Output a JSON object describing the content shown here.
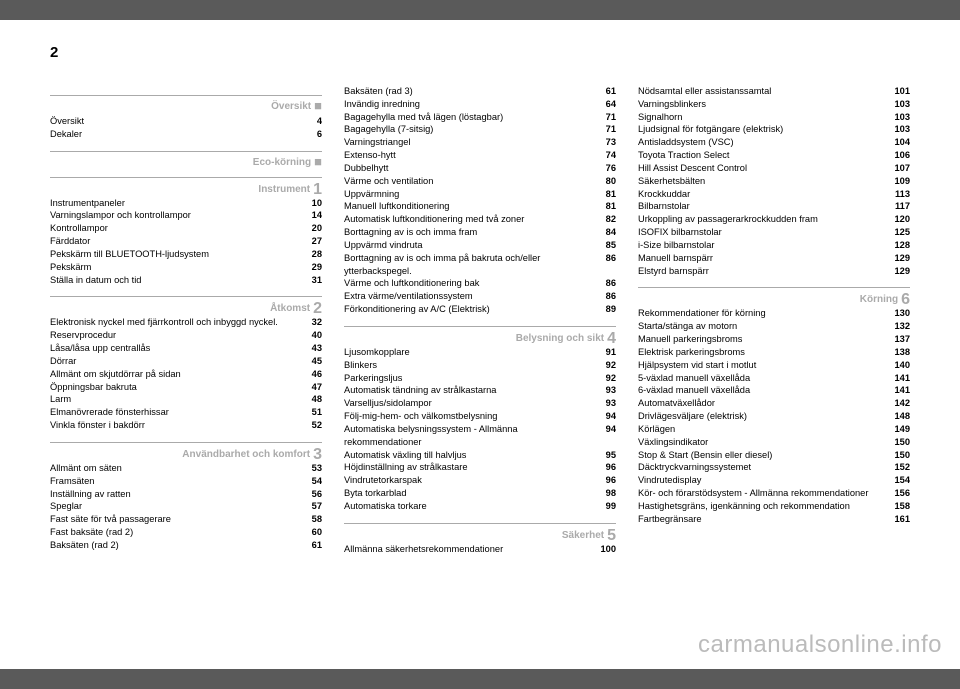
{
  "page_number": "2",
  "watermark": "carmanualsonline.info",
  "columns": [
    {
      "blocks": [
        {
          "type": "section",
          "label": "Översikt",
          "marker": "square"
        },
        {
          "type": "entries",
          "items": [
            {
              "t": "Översikt",
              "p": "4"
            },
            {
              "t": "Dekaler",
              "p": "6"
            }
          ]
        },
        {
          "type": "section",
          "label": "Eco-körning",
          "marker": "square"
        },
        {
          "type": "section",
          "label": "Instrument",
          "marker": "1"
        },
        {
          "type": "entries",
          "items": [
            {
              "t": "Instrumentpaneler",
              "p": "10"
            },
            {
              "t": "Varningslampor och kontrollampor",
              "p": "14"
            },
            {
              "t": "Kontrollampor",
              "p": "20"
            },
            {
              "t": "Färddator",
              "p": "27"
            },
            {
              "t": "Pekskärm till BLUETOOTH-ljudsystem",
              "p": "28"
            },
            {
              "t": "Pekskärm",
              "p": "29"
            },
            {
              "t": "Ställa in datum och tid",
              "p": "31"
            }
          ]
        },
        {
          "type": "section",
          "label": "Åtkomst",
          "marker": "2"
        },
        {
          "type": "entries",
          "items": [
            {
              "t": "Elektronisk nyckel med fjärrkontroll och inbyggd nyckel.",
              "p": "32"
            },
            {
              "t": "Reservprocedur",
              "p": "40"
            },
            {
              "t": "Låsa/låsa upp centrallås",
              "p": "43"
            },
            {
              "t": "Dörrar",
              "p": "45"
            },
            {
              "t": "Allmänt om skjutdörrar på sidan",
              "p": "46"
            },
            {
              "t": "Öppningsbar bakruta",
              "p": "47"
            },
            {
              "t": "Larm",
              "p": "48"
            },
            {
              "t": "Elmanövrerade fönsterhissar",
              "p": "51"
            },
            {
              "t": "Vinkla fönster i bakdörr",
              "p": "52"
            }
          ]
        },
        {
          "type": "section",
          "label": "Användbarhet och komfort",
          "marker": "3"
        },
        {
          "type": "entries",
          "items": [
            {
              "t": "Allmänt om säten",
              "p": "53"
            },
            {
              "t": "Framsäten",
              "p": "54"
            },
            {
              "t": "Inställning av ratten",
              "p": "56"
            },
            {
              "t": "Speglar",
              "p": "57"
            },
            {
              "t": "Fast säte för två passagerare",
              "p": "58"
            },
            {
              "t": "Fast baksäte (rad 2)",
              "p": "60"
            },
            {
              "t": "Baksäten (rad 2)",
              "p": "61"
            }
          ]
        }
      ]
    },
    {
      "blocks": [
        {
          "type": "entries",
          "items": [
            {
              "t": "Baksäten (rad 3)",
              "p": "61"
            },
            {
              "t": "Invändig inredning",
              "p": "64"
            },
            {
              "t": "Bagagehylla med två lägen (löstagbar)",
              "p": "71"
            },
            {
              "t": "Bagagehylla (7-sitsig)",
              "p": "71"
            },
            {
              "t": "Varningstriangel",
              "p": "73"
            },
            {
              "t": "Extenso-hytt",
              "p": "74"
            },
            {
              "t": "Dubbelhytt",
              "p": "76"
            },
            {
              "t": "Värme och ventilation",
              "p": "80"
            },
            {
              "t": "Uppvärmning",
              "p": "81"
            },
            {
              "t": "Manuell luftkonditionering",
              "p": "81"
            },
            {
              "t": "Automatisk luftkonditionering med två zoner",
              "p": "82"
            },
            {
              "t": "Borttagning av is och imma fram",
              "p": "84"
            },
            {
              "t": "Uppvärmd vindruta",
              "p": "85"
            },
            {
              "t": "Borttagning av is och imma på bakruta och/eller ytterbackspegel.",
              "p": "86"
            },
            {
              "t": "Värme och luftkonditionering bak",
              "p": "86"
            },
            {
              "t": "Extra värme/ventilationssystem",
              "p": "86"
            },
            {
              "t": "Förkonditionering av A/C (Elektrisk)",
              "p": "89"
            }
          ]
        },
        {
          "type": "section",
          "label": "Belysning och sikt",
          "marker": "4"
        },
        {
          "type": "entries",
          "items": [
            {
              "t": "Ljusomkopplare",
              "p": "91"
            },
            {
              "t": "Blinkers",
              "p": "92"
            },
            {
              "t": "Parkeringsljus",
              "p": "92"
            },
            {
              "t": "Automatisk tändning av strålkastarna",
              "p": "93"
            },
            {
              "t": "Varselljus/sidolampor",
              "p": "93"
            },
            {
              "t": "Följ-mig-hem- och välkomstbelysning",
              "p": "94"
            },
            {
              "t": "Automatiska belysningssystem - Allmänna rekommendationer",
              "p": "94"
            },
            {
              "t": "Automatisk växling till halvljus",
              "p": "95"
            },
            {
              "t": "Höjdinställning av strålkastare",
              "p": "96"
            },
            {
              "t": "Vindrutetorkarspak",
              "p": "96"
            },
            {
              "t": "Byta torkarblad",
              "p": "98"
            },
            {
              "t": "Automatiska torkare",
              "p": "99"
            }
          ]
        },
        {
          "type": "section",
          "label": "Säkerhet",
          "marker": "5"
        },
        {
          "type": "entries",
          "items": [
            {
              "t": "Allmänna säkerhetsrekommendationer",
              "p": "100"
            }
          ]
        }
      ]
    },
    {
      "blocks": [
        {
          "type": "entries",
          "items": [
            {
              "t": "Nödsamtal eller assistanssamtal",
              "p": "101"
            },
            {
              "t": "Varningsblinkers",
              "p": "103"
            },
            {
              "t": "Signalhorn",
              "p": "103"
            },
            {
              "t": "Ljudsignal för fotgängare (elektrisk)",
              "p": "103"
            },
            {
              "t": "Antisladdsystem (VSC)",
              "p": "104"
            },
            {
              "t": "Toyota Traction Select",
              "p": "106"
            },
            {
              "t": "Hill Assist Descent Control",
              "p": "107"
            },
            {
              "t": "Säkerhetsbälten",
              "p": "109"
            },
            {
              "t": "Krockkuddar",
              "p": "113"
            },
            {
              "t": "Bilbarnstolar",
              "p": "117"
            },
            {
              "t": "Urkoppling av passagerarkrockkudden fram",
              "p": "120"
            },
            {
              "t": "ISOFIX bilbarnstolar",
              "p": "125"
            },
            {
              "t": "i-Size bilbarnstolar",
              "p": "128"
            },
            {
              "t": "Manuell barnspärr",
              "p": "129"
            },
            {
              "t": "Elstyrd barnspärr",
              "p": "129"
            }
          ]
        },
        {
          "type": "section",
          "label": "Körning",
          "marker": "6"
        },
        {
          "type": "entries",
          "items": [
            {
              "t": "Rekommendationer för körning",
              "p": "130"
            },
            {
              "t": "Starta/stänga av motorn",
              "p": "132"
            },
            {
              "t": "Manuell parkeringsbroms",
              "p": "137"
            },
            {
              "t": "Elektrisk parkeringsbroms",
              "p": "138"
            },
            {
              "t": "Hjälpsystem vid start i motlut",
              "p": "140"
            },
            {
              "t": "5-växlad manuell växellåda",
              "p": "141"
            },
            {
              "t": "6-växlad manuell växellåda",
              "p": "141"
            },
            {
              "t": "Automatväxellådor",
              "p": "142"
            },
            {
              "t": "Drivlägesväljare (elektrisk)",
              "p": "148"
            },
            {
              "t": "Körlägen",
              "p": "149"
            },
            {
              "t": "Växlingsindikator",
              "p": "150"
            },
            {
              "t": "Stop & Start (Bensin eller diesel)",
              "p": "150"
            },
            {
              "t": "Däcktryckvarningssystemet",
              "p": "152"
            },
            {
              "t": "Vindrutedisplay",
              "p": "154"
            },
            {
              "t": "Kör- och förarstödsystem - Allmänna rekommendationer",
              "p": "156"
            },
            {
              "t": "Hastighetsgräns, igenkänning och rekommendation",
              "p": "158"
            },
            {
              "t": "Fartbegränsare",
              "p": "161"
            }
          ]
        }
      ]
    }
  ]
}
